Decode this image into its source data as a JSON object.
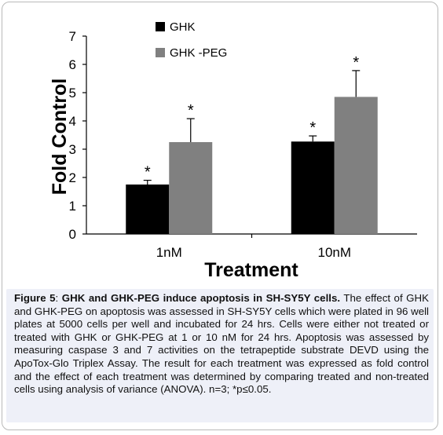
{
  "chart_data": {
    "type": "bar",
    "categories": [
      "1nM",
      "10nM"
    ],
    "series": [
      {
        "name": "GHK",
        "values": [
          1.75,
          3.27
        ],
        "errors": [
          0.15,
          0.2
        ],
        "color": "#000000",
        "significance": [
          "*",
          "*"
        ]
      },
      {
        "name": "GHK -PEG",
        "values": [
          3.25,
          4.85
        ],
        "errors": [
          0.83,
          0.93
        ],
        "color": "#808080",
        "significance": [
          "*",
          "*"
        ]
      }
    ],
    "xlabel": "Treatment",
    "ylabel": "Fold Control",
    "ylim": [
      0,
      7
    ],
    "yticks": [
      "0",
      "1",
      "2",
      "3",
      "4",
      "5",
      "6",
      "7"
    ],
    "grid": false,
    "legend_position": "top-left"
  },
  "caption": {
    "label": "Figure 5",
    "separator": ": ",
    "title": "GHK and GHK-PEG induce apoptosis in SH-SY5Y cells.",
    "body": " The effect of GHK and GHK-PEG on apoptosis was assessed in SH-SY5Y cells which were plated in 96 well plates at 5000 cells per well and incubated for 24 hrs. Cells were either not treated or treated with GHK or GHK-PEG at 1 or 10 nM for 24 hrs. Apoptosis was assessed by measuring caspase 3 and 7 activities on the tetrapeptide substrate DEVD using the ApoTox-Glo Triplex Assay. The result for each treatment was expressed as fold control and the effect of each treatment was determined by comparing treated and non-treated cells using analysis of variance (ANOVA). n=3; *p≤0.05."
  }
}
